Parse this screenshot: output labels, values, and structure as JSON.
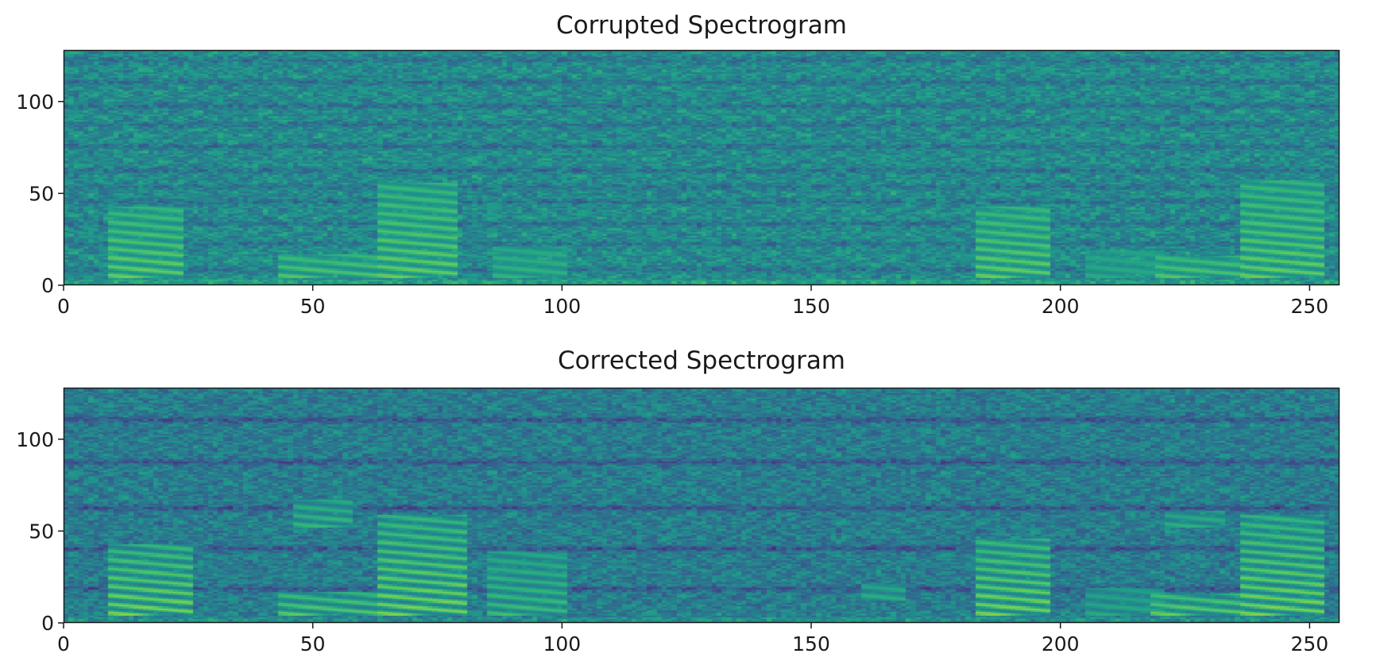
{
  "chart_data": [
    {
      "type": "heatmap",
      "title": "Corrupted Spectrogram",
      "xlim": [
        0,
        256
      ],
      "ylim": [
        0,
        128
      ],
      "xticks": [
        0,
        50,
        100,
        150,
        200,
        250
      ],
      "yticks": [
        0,
        50,
        100
      ],
      "colormap": "viridis",
      "value_range": [
        0,
        1
      ],
      "background_level": 0.48,
      "horizontal_band_rows": [
        8,
        22,
        33,
        45,
        53,
        62,
        75,
        87,
        97,
        110,
        122
      ],
      "horizontal_band_level": 0.06,
      "harmonic_regions": [
        {
          "t": [
            9,
            23
          ],
          "f": [
            4,
            42
          ],
          "level": 0.78
        },
        {
          "t": [
            43,
            62
          ],
          "f": [
            4,
            16
          ],
          "level": 0.74
        },
        {
          "t": [
            63,
            78
          ],
          "f": [
            4,
            55
          ],
          "level": 0.78
        },
        {
          "t": [
            86,
            100
          ],
          "f": [
            4,
            20
          ],
          "level": 0.66
        },
        {
          "t": [
            183,
            197
          ],
          "f": [
            4,
            42
          ],
          "level": 0.78
        },
        {
          "t": [
            205,
            220
          ],
          "f": [
            4,
            18
          ],
          "level": 0.62
        },
        {
          "t": [
            219,
            236
          ],
          "f": [
            4,
            15
          ],
          "level": 0.74
        },
        {
          "t": [
            236,
            252
          ],
          "f": [
            4,
            56
          ],
          "level": 0.78
        }
      ]
    },
    {
      "type": "heatmap",
      "title": "Corrected Spectrogram",
      "xlim": [
        0,
        256
      ],
      "ylim": [
        0,
        128
      ],
      "xticks": [
        0,
        50,
        100,
        150,
        200,
        250
      ],
      "yticks": [
        0,
        50,
        100
      ],
      "colormap": "viridis",
      "value_range": [
        0,
        1
      ],
      "background_level": 0.42,
      "horizontal_band_rows": [
        18,
        40,
        62,
        87,
        110
      ],
      "horizontal_band_level": 0.09,
      "harmonic_regions": [
        {
          "t": [
            9,
            25
          ],
          "f": [
            4,
            42
          ],
          "level": 0.82
        },
        {
          "t": [
            43,
            62
          ],
          "f": [
            4,
            16
          ],
          "level": 0.76
        },
        {
          "t": [
            46,
            57
          ],
          "f": [
            52,
            66
          ],
          "level": 0.68
        },
        {
          "t": [
            63,
            80
          ],
          "f": [
            4,
            58
          ],
          "level": 0.82
        },
        {
          "t": [
            85,
            100
          ],
          "f": [
            4,
            38
          ],
          "level": 0.7
        },
        {
          "t": [
            160,
            168
          ],
          "f": [
            12,
            20
          ],
          "level": 0.64
        },
        {
          "t": [
            183,
            197
          ],
          "f": [
            4,
            45
          ],
          "level": 0.82
        },
        {
          "t": [
            205,
            220
          ],
          "f": [
            4,
            18
          ],
          "level": 0.62
        },
        {
          "t": [
            218,
            236
          ],
          "f": [
            4,
            15
          ],
          "level": 0.78
        },
        {
          "t": [
            221,
            232
          ],
          "f": [
            52,
            60
          ],
          "level": 0.64
        },
        {
          "t": [
            236,
            252
          ],
          "f": [
            4,
            58
          ],
          "level": 0.82
        }
      ]
    }
  ]
}
